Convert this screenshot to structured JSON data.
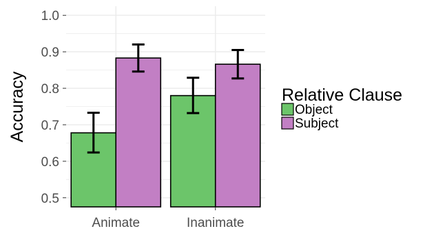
{
  "chart_data": {
    "type": "bar",
    "title": "",
    "xlabel": "",
    "ylabel": "Accuracy",
    "categories": [
      "Animate",
      "Inanimate"
    ],
    "series": [
      {
        "name": "Object",
        "values": [
          0.678,
          0.78
        ],
        "error_low": [
          0.624,
          0.732
        ],
        "error_high": [
          0.733,
          0.829
        ]
      },
      {
        "name": "Subject",
        "values": [
          0.883,
          0.866
        ],
        "error_low": [
          0.846,
          0.827
        ],
        "error_high": [
          0.92,
          0.905
        ]
      }
    ],
    "ylim": [
      0.475,
      1.025
    ],
    "yticks": [
      "0.5",
      "0.6",
      "0.7",
      "0.8",
      "0.9",
      "1.0"
    ],
    "grid": true,
    "legend": {
      "title": "Relative Clause",
      "placement": "right"
    },
    "colors": {
      "Object": "#6cc56a",
      "Subject": "#c27fc4",
      "panel": "#ffffff",
      "grid": "#ebebeb",
      "bar_outline": "#000000"
    }
  }
}
